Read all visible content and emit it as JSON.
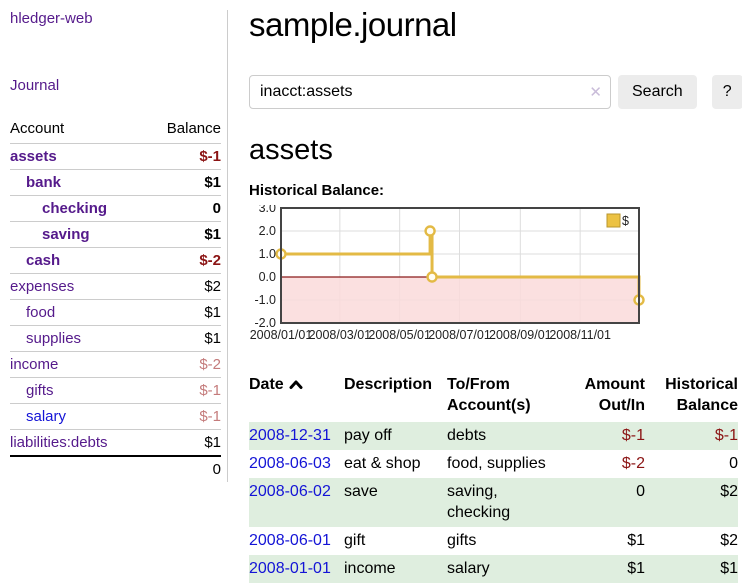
{
  "app": {
    "brand": "hledger-web",
    "nav_journal": "Journal"
  },
  "colors": {
    "link_purple": "#551a8b",
    "link_blue": "#1414d6",
    "negative_dark": "#8b1414",
    "negative_soft": "#c47b7b",
    "row_stripe_green": "#dfeedf",
    "chart_line": "#e3ba45",
    "chart_negative_fill": "#fadada",
    "chart_zero_line": "#8b1a1a",
    "legend_swatch": "#ecc243"
  },
  "sidebar": {
    "header": {
      "account": "Account",
      "balance": "Balance"
    },
    "accounts": [
      {
        "name": "assets",
        "depth": 1,
        "bold": true,
        "balance": "$-1",
        "tone": "neg",
        "link": "purple"
      },
      {
        "name": "bank",
        "depth": 2,
        "bold": true,
        "balance": "$1",
        "tone": "plain",
        "link": "purple"
      },
      {
        "name": "checking",
        "depth": 3,
        "bold": true,
        "balance": "0",
        "tone": "plain",
        "link": "purple"
      },
      {
        "name": "saving",
        "depth": 3,
        "bold": true,
        "balance": "$1",
        "tone": "plain",
        "link": "purple"
      },
      {
        "name": "cash",
        "depth": 2,
        "bold": true,
        "balance": "$-2",
        "tone": "neg",
        "link": "purple"
      },
      {
        "name": "expenses",
        "depth": 1,
        "bold": false,
        "balance": "$2",
        "tone": "plain",
        "link": "purple"
      },
      {
        "name": "food",
        "depth": 2,
        "bold": false,
        "balance": "$1",
        "tone": "plain",
        "link": "purple"
      },
      {
        "name": "supplies",
        "depth": 2,
        "bold": false,
        "balance": "$1",
        "tone": "plain",
        "link": "purple"
      },
      {
        "name": "income",
        "depth": 1,
        "bold": false,
        "balance": "$-2",
        "tone": "rose",
        "link": "purple"
      },
      {
        "name": "gifts",
        "depth": 2,
        "bold": false,
        "balance": "$-1",
        "tone": "rose",
        "link": "purple"
      },
      {
        "name": "salary",
        "depth": 2,
        "bold": false,
        "balance": "$-1",
        "tone": "rose",
        "link": "blue"
      },
      {
        "name": "liabilities:debts",
        "depth": 1,
        "bold": false,
        "balance": "$1",
        "tone": "plain",
        "link": "purple"
      }
    ],
    "total": "0"
  },
  "main": {
    "title": "sample.journal",
    "search": {
      "value": "inacct:assets",
      "clear_icon": "✕",
      "button_label": "Search",
      "help_label": "?"
    },
    "account_heading": "assets",
    "chart_label": "Historical Balance:"
  },
  "chart_data": {
    "type": "line",
    "title": "Historical Balance",
    "step": true,
    "xlim": [
      "2008-01-01",
      "2008-12-31"
    ],
    "ylim": [
      -2,
      3
    ],
    "y_ticks": [
      3.0,
      2.0,
      1.0,
      0.0,
      -1.0,
      -2.0
    ],
    "x_ticks": [
      "2008/01/01",
      "2008/03/01",
      "2008/05/01",
      "2008/07/01",
      "2008/09/01",
      "2008/11/01"
    ],
    "grid": true,
    "legend_position": "top-right",
    "series": [
      {
        "name": "$",
        "points": [
          [
            "2008-01-01",
            1
          ],
          [
            "2008-06-01",
            2
          ],
          [
            "2008-06-02",
            2
          ],
          [
            "2008-06-03",
            0
          ],
          [
            "2008-12-31",
            -1
          ]
        ]
      }
    ]
  },
  "register": {
    "columns": [
      {
        "label": "Date",
        "align": "left",
        "sorted": "asc"
      },
      {
        "label": "Description",
        "align": "left"
      },
      {
        "label": "To/From Account(s)",
        "align": "left"
      },
      {
        "label": "Amount Out/In",
        "align": "right"
      },
      {
        "label": "Historical Balance",
        "align": "right"
      }
    ],
    "rows": [
      {
        "date": "2008-12-31",
        "description": "pay off",
        "accounts": "debts",
        "amount": "$-1",
        "balance": "$-1",
        "amount_tone": "neg",
        "balance_tone": "neg"
      },
      {
        "date": "2008-06-03",
        "description": "eat & shop",
        "accounts": "food, supplies",
        "amount": "$-2",
        "balance": "0",
        "amount_tone": "neg",
        "balance_tone": "plain"
      },
      {
        "date": "2008-06-02",
        "description": "save",
        "accounts": "saving, checking",
        "amount": "0",
        "balance": "$2",
        "amount_tone": "plain",
        "balance_tone": "plain"
      },
      {
        "date": "2008-06-01",
        "description": "gift",
        "accounts": "gifts",
        "amount": "$1",
        "balance": "$2",
        "amount_tone": "plain",
        "balance_tone": "plain"
      },
      {
        "date": "2008-01-01",
        "description": "income",
        "accounts": "salary",
        "amount": "$1",
        "balance": "$1",
        "amount_tone": "plain",
        "balance_tone": "plain"
      }
    ]
  }
}
